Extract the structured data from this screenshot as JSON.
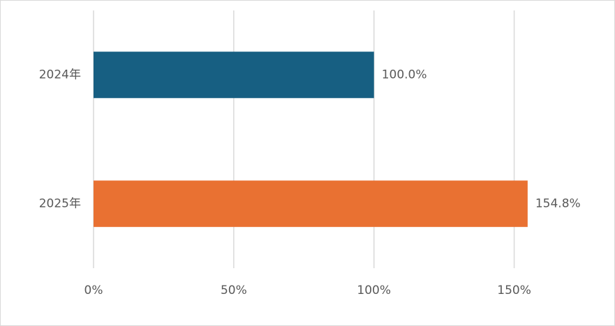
{
  "chart_data": {
    "type": "bar",
    "orientation": "horizontal",
    "categories": [
      "2024年",
      "2025年"
    ],
    "values": [
      100,
      154.8
    ],
    "value_labels": [
      "100.0%",
      "154.8%"
    ],
    "colors": [
      "#175f82",
      "#e97132"
    ],
    "xlim": [
      0,
      175
    ],
    "xticks": [
      {
        "value": 0,
        "label": "0%"
      },
      {
        "value": 50,
        "label": "50%"
      },
      {
        "value": 100,
        "label": "100%"
      },
      {
        "value": 150,
        "label": "150%"
      }
    ],
    "grid": true
  }
}
